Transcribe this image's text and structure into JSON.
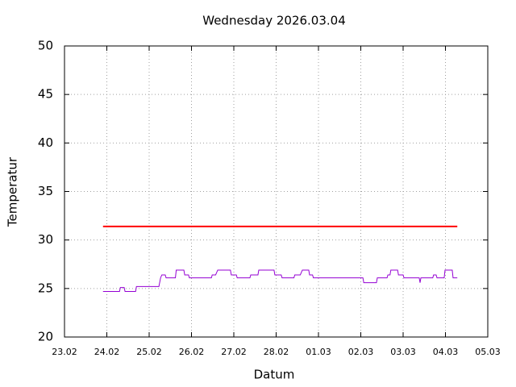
{
  "chart_data": {
    "type": "line",
    "title": "Wednesday 2026.03.04",
    "xlabel": "Datum",
    "ylabel": "Temperatur",
    "xlim": [
      0,
      10
    ],
    "xticks": [
      {
        "value": 0,
        "label": "23.02"
      },
      {
        "value": 1,
        "label": "24.02"
      },
      {
        "value": 2,
        "label": "25.02"
      },
      {
        "value": 3,
        "label": "26.02"
      },
      {
        "value": 4,
        "label": "27.02"
      },
      {
        "value": 5,
        "label": "28.02"
      },
      {
        "value": 6,
        "label": "01.03"
      },
      {
        "value": 7,
        "label": "02.03"
      },
      {
        "value": 8,
        "label": "03.03"
      },
      {
        "value": 9,
        "label": "04.03"
      },
      {
        "value": 10,
        "label": "05.03"
      }
    ],
    "ylim": [
      20,
      50
    ],
    "yticks": [
      20,
      25,
      30,
      35,
      40,
      45,
      50
    ],
    "grid": true,
    "series": [
      {
        "color": "#ff0000",
        "width": 2,
        "x": [
          0.91,
          9.28
        ],
        "values": [
          31.4,
          31.4
        ]
      },
      {
        "color": "#9400d3",
        "width": 1,
        "x": [
          0.91,
          1.3,
          1.32,
          1.41,
          1.43,
          1.68,
          1.7,
          2.23,
          2.27,
          2.3,
          2.38,
          2.4,
          2.62,
          2.64,
          2.82,
          2.84,
          2.93,
          2.95,
          3.47,
          3.49,
          3.57,
          3.62,
          3.92,
          3.94,
          4.06,
          4.08,
          4.38,
          4.4,
          4.57,
          4.59,
          4.95,
          4.97,
          5.12,
          5.14,
          5.42,
          5.44,
          5.57,
          5.62,
          5.77,
          5.79,
          5.86,
          5.88,
          7.05,
          7.07,
          7.37,
          7.39,
          7.62,
          7.64,
          7.69,
          7.71,
          7.87,
          7.89,
          8.0,
          8.02,
          8.38,
          8.4,
          8.42,
          8.7,
          8.72,
          8.78,
          8.8,
          8.97,
          8.99,
          9.16,
          9.18,
          9.28
        ],
        "values": [
          24.7,
          24.7,
          25.1,
          25.1,
          24.7,
          24.7,
          25.2,
          25.2,
          26.1,
          26.4,
          26.4,
          26.1,
          26.1,
          26.9,
          26.9,
          26.4,
          26.4,
          26.1,
          26.1,
          26.4,
          26.4,
          26.9,
          26.9,
          26.4,
          26.4,
          26.1,
          26.1,
          26.4,
          26.4,
          26.9,
          26.9,
          26.4,
          26.4,
          26.1,
          26.1,
          26.4,
          26.4,
          26.9,
          26.9,
          26.4,
          26.4,
          26.1,
          26.1,
          25.6,
          25.6,
          26.1,
          26.1,
          26.4,
          26.4,
          26.9,
          26.9,
          26.4,
          26.4,
          26.1,
          26.1,
          25.6,
          26.1,
          26.1,
          26.4,
          26.4,
          26.1,
          26.1,
          26.9,
          26.9,
          26.1,
          26.1
        ]
      }
    ]
  }
}
